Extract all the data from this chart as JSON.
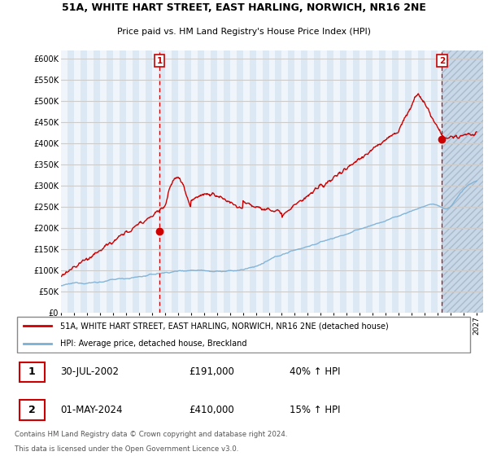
{
  "title": "51A, WHITE HART STREET, EAST HARLING, NORWICH, NR16 2NE",
  "subtitle": "Price paid vs. HM Land Registry's House Price Index (HPI)",
  "ylabel_ticks": [
    0,
    50000,
    100000,
    150000,
    200000,
    250000,
    300000,
    350000,
    400000,
    450000,
    500000,
    550000,
    600000
  ],
  "ylabel_labels": [
    "£0",
    "£50K",
    "£100K",
    "£150K",
    "£200K",
    "£250K",
    "£300K",
    "£350K",
    "£400K",
    "£450K",
    "£500K",
    "£550K",
    "£600K"
  ],
  "ylim": [
    0,
    620000
  ],
  "xlim_start": 1995.0,
  "xlim_end": 2027.5,
  "transaction1": {
    "label": "1",
    "year": 2002.58,
    "price": 191000,
    "date_str": "30-JUL-2002",
    "amount_str": "£191,000",
    "pct_str": "40% ↑ HPI"
  },
  "transaction2": {
    "label": "2",
    "year": 2024.33,
    "price": 410000,
    "date_str": "01-MAY-2024",
    "amount_str": "£410,000",
    "pct_str": "15% ↑ HPI"
  },
  "legend_line1": "51A, WHITE HART STREET, EAST HARLING, NORWICH, NR16 2NE (detached house)",
  "legend_line2": "HPI: Average price, detached house, Breckland",
  "footer1": "Contains HM Land Registry data © Crown copyright and database right 2024.",
  "footer2": "This data is licensed under the Open Government Licence v3.0.",
  "line_red_color": "#cc0000",
  "line_blue_color": "#7bafd4",
  "background_color": "#ffffff",
  "plot_bg_color": "#dce9f5",
  "stripe_color": "#ffffff",
  "grid_color": "#cccccc",
  "hatch_region_start": 2024.33,
  "hatch_region_color": "#c8d8e8"
}
